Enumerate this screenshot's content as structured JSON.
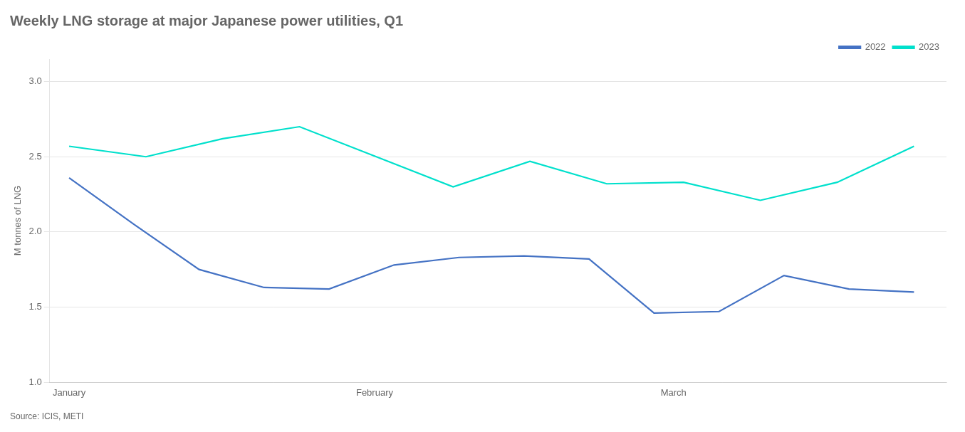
{
  "chart_data": {
    "type": "line",
    "title": "Weekly LNG storage at major Japanese power utilities, Q1",
    "ylabel": "M tonnes of LNG",
    "source": "Source: ICIS, METI",
    "series": [
      {
        "name": "2022",
        "color": "#4472c4",
        "x": [
          0,
          1,
          2,
          3,
          4,
          5,
          6,
          7,
          8,
          9,
          10,
          11,
          12,
          13
        ],
        "values": [
          2.36,
          2.05,
          1.75,
          1.63,
          1.62,
          1.78,
          1.83,
          1.84,
          1.82,
          1.46,
          1.47,
          1.71,
          1.62,
          1.6
        ]
      },
      {
        "name": "2023",
        "color": "#00e0cc",
        "x": [
          0,
          1.1818181818181819,
          2.3636363636363638,
          3.5454545454545454,
          4.7272727272727275,
          5.909090909090909,
          7.090909090909091,
          8.272727272727273,
          9.454545454545455,
          10.636363636363637,
          11.818181818181818,
          13
        ],
        "values": [
          2.57,
          2.5,
          2.62,
          2.7,
          2.5,
          2.3,
          2.47,
          2.32,
          2.33,
          2.21,
          2.33,
          2.57
        ]
      }
    ],
    "xlim": [
      -0.3,
      13.5
    ],
    "xticks": [
      {
        "value": 0,
        "label": "January"
      },
      {
        "value": 4.7,
        "label": "February"
      },
      {
        "value": 9.3,
        "label": "March"
      }
    ],
    "ylim": [
      1.0,
      3.15
    ],
    "yticks": [
      {
        "value": 1.0,
        "label": "1.0"
      },
      1.5,
      {
        "value": 2.0,
        "label": "2.0"
      },
      2.5,
      {
        "value": 3.0,
        "label": "3.0"
      }
    ],
    "grid": "y",
    "legend": "upper right"
  }
}
